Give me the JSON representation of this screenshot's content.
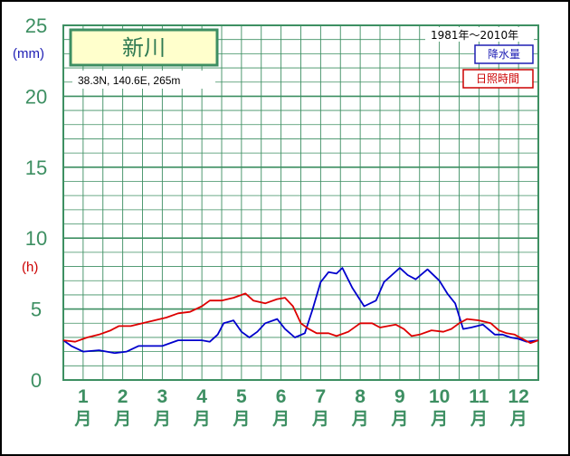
{
  "chart_data": {
    "type": "line",
    "title": "新川",
    "location": "38.3N,  140.6E,  265m",
    "period": "1981年～2010年",
    "y_left_unit": "(mm)",
    "y_right_unit": "(h)",
    "y_ticks": [
      "0",
      "5",
      "10",
      "15",
      "20",
      "25"
    ],
    "ylim": [
      0,
      25
    ],
    "months": [
      {
        "num": "1",
        "kanji": "月"
      },
      {
        "num": "2",
        "kanji": "月"
      },
      {
        "num": "3",
        "kanji": "月"
      },
      {
        "num": "4",
        "kanji": "月"
      },
      {
        "num": "5",
        "kanji": "月"
      },
      {
        "num": "6",
        "kanji": "月"
      },
      {
        "num": "7",
        "kanji": "月"
      },
      {
        "num": "8",
        "kanji": "月"
      },
      {
        "num": "9",
        "kanji": "月"
      },
      {
        "num": "10",
        "kanji": "月"
      },
      {
        "num": "11",
        "kanji": "月"
      },
      {
        "num": "12",
        "kanji": "月"
      }
    ],
    "grid": true,
    "legend_position": "top-right",
    "x_range": [
      0,
      12
    ],
    "series": [
      {
        "name": "降水量",
        "color": "#0000cc",
        "x": [
          0.0,
          0.2,
          0.5,
          0.9,
          1.3,
          1.6,
          1.9,
          2.2,
          2.5,
          2.9,
          3.2,
          3.5,
          3.7,
          3.9,
          4.05,
          4.3,
          4.5,
          4.7,
          4.9,
          5.1,
          5.4,
          5.6,
          5.85,
          6.1,
          6.3,
          6.5,
          6.7,
          6.9,
          7.05,
          7.3,
          7.6,
          7.9,
          8.1,
          8.3,
          8.5,
          8.7,
          8.9,
          9.2,
          9.5,
          9.7,
          9.9,
          10.1,
          10.3,
          10.6,
          10.9,
          11.1,
          11.3,
          11.5,
          11.7,
          12.0
        ],
        "values": [
          2.8,
          2.4,
          2.0,
          2.1,
          1.9,
          2.0,
          2.4,
          2.4,
          2.4,
          2.8,
          2.8,
          2.8,
          2.7,
          3.2,
          4.0,
          4.2,
          3.4,
          3.0,
          3.4,
          4.0,
          4.3,
          3.6,
          3.0,
          3.3,
          5.0,
          6.9,
          7.6,
          7.5,
          7.9,
          6.5,
          5.2,
          5.6,
          6.9,
          7.4,
          7.9,
          7.4,
          7.1,
          7.8,
          7.0,
          6.1,
          5.4,
          3.6,
          3.7,
          3.9,
          3.2,
          3.2,
          3.0,
          2.9,
          2.7,
          2.8
        ]
      },
      {
        "name": "日照時間",
        "color": "#dd0000",
        "x": [
          0.0,
          0.3,
          0.6,
          0.9,
          1.2,
          1.4,
          1.7,
          2.0,
          2.3,
          2.6,
          2.9,
          3.2,
          3.5,
          3.7,
          4.0,
          4.3,
          4.6,
          4.8,
          5.1,
          5.4,
          5.6,
          5.8,
          6.0,
          6.2,
          6.4,
          6.7,
          6.9,
          7.2,
          7.5,
          7.8,
          8.0,
          8.2,
          8.4,
          8.6,
          8.8,
          9.0,
          9.3,
          9.6,
          9.8,
          10.0,
          10.2,
          10.5,
          10.8,
          11.0,
          11.2,
          11.4,
          11.6,
          11.8,
          12.0
        ],
        "values": [
          2.8,
          2.7,
          3.0,
          3.2,
          3.5,
          3.8,
          3.8,
          4.0,
          4.2,
          4.4,
          4.7,
          4.8,
          5.2,
          5.6,
          5.6,
          5.8,
          6.1,
          5.6,
          5.4,
          5.7,
          5.8,
          5.2,
          4.0,
          3.6,
          3.3,
          3.3,
          3.1,
          3.4,
          4.0,
          4.0,
          3.7,
          3.8,
          3.9,
          3.6,
          3.1,
          3.2,
          3.5,
          3.4,
          3.6,
          4.0,
          4.3,
          4.2,
          4.0,
          3.5,
          3.3,
          3.2,
          2.9,
          2.6,
          2.8
        ]
      }
    ]
  }
}
